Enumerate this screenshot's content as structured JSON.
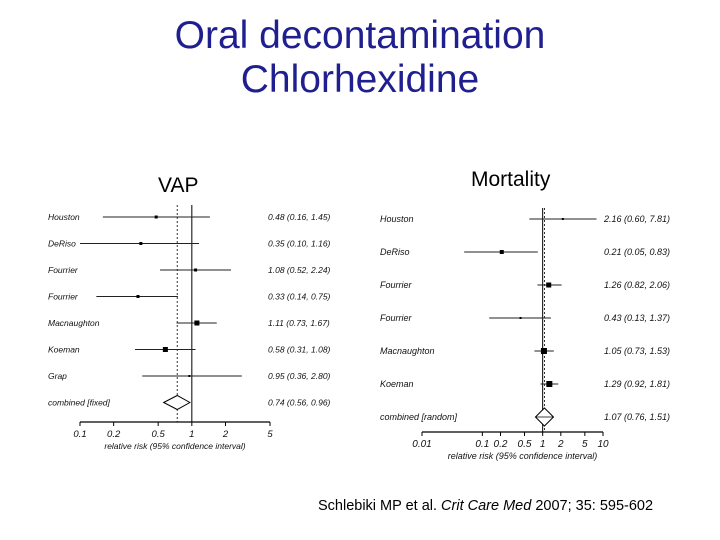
{
  "title_line1": "Oral decontamination",
  "title_line2": "Chlorhexidine",
  "panel_label_left": "VAP",
  "panel_label_right": "Mortality",
  "citation": {
    "authors": "Schlebiki MP et al. ",
    "journal": "Crit Care Med",
    "details": " 2007; 35: 595-602"
  },
  "colors": {
    "title": "#1f1f8f"
  },
  "chart_data": [
    {
      "type": "scatter",
      "subtype": "forest-plot",
      "panel": "VAP",
      "scale": "log",
      "xlabel": "relative risk (95% confidence interval)",
      "xlim": [
        0.1,
        5
      ],
      "xticks": [
        "0.1",
        "0.2",
        "0.5",
        "1",
        "2",
        "5"
      ],
      "reference_line": 1,
      "pooled_line": 0.74,
      "studies": [
        {
          "name": "Houston",
          "rr": 0.48,
          "lo": 0.16,
          "hi": 1.45,
          "ci_text": "0.48 (0.16, 1.45)"
        },
        {
          "name": "DeRiso",
          "rr": 0.35,
          "lo": 0.1,
          "hi": 1.16,
          "ci_text": "0.35 (0.10, 1.16)"
        },
        {
          "name": "Fourrier",
          "rr": 1.08,
          "lo": 0.52,
          "hi": 2.24,
          "ci_text": "1.08 (0.52, 2.24)"
        },
        {
          "name": "Fourrier",
          "rr": 0.33,
          "lo": 0.14,
          "hi": 0.75,
          "ci_text": "0.33 (0.14, 0.75)"
        },
        {
          "name": "Macnaughton",
          "rr": 1.11,
          "lo": 0.73,
          "hi": 1.67,
          "ci_text": "1.11 (0.73, 1.67)"
        },
        {
          "name": "Koeman",
          "rr": 0.58,
          "lo": 0.31,
          "hi": 1.08,
          "ci_text": "0.58 (0.31, 1.08)"
        },
        {
          "name": "Grap",
          "rr": 0.95,
          "lo": 0.36,
          "hi": 2.8,
          "ci_text": "0.95 (0.36, 2.80)"
        }
      ],
      "combined": {
        "name": "combined [fixed]",
        "rr": 0.74,
        "lo": 0.56,
        "hi": 0.96,
        "ci_text": "0.74 (0.56, 0.96)"
      }
    },
    {
      "type": "scatter",
      "subtype": "forest-plot",
      "panel": "Mortality",
      "scale": "log",
      "xlabel": "relative risk (95% confidence interval)",
      "xlim": [
        0.01,
        10
      ],
      "xticks": [
        "0.01",
        "0.1",
        "0.2",
        "0.5",
        "1",
        "2",
        "5",
        "10"
      ],
      "reference_line": 1,
      "pooled_line": 1.07,
      "studies": [
        {
          "name": "Houston",
          "rr": 2.16,
          "lo": 0.6,
          "hi": 7.81,
          "ci_text": "2.16 (0.60, 7.81)"
        },
        {
          "name": "DeRiso",
          "rr": 0.21,
          "lo": 0.05,
          "hi": 0.83,
          "ci_text": "0.21 (0.05, 0.83)"
        },
        {
          "name": "Fourrier",
          "rr": 1.26,
          "lo": 0.82,
          "hi": 2.06,
          "ci_text": "1.26 (0.82, 2.06)"
        },
        {
          "name": "Fourrier",
          "rr": 0.43,
          "lo": 0.13,
          "hi": 1.37,
          "ci_text": "0.43 (0.13, 1.37)"
        },
        {
          "name": "Macnaughton",
          "rr": 1.05,
          "lo": 0.73,
          "hi": 1.53,
          "ci_text": "1.05 (0.73, 1.53)"
        },
        {
          "name": "Koeman",
          "rr": 1.29,
          "lo": 0.92,
          "hi": 1.81,
          "ci_text": "1.29 (0.92, 1.81)"
        }
      ],
      "combined": {
        "name": "combined [random]",
        "rr": 1.07,
        "lo": 0.76,
        "hi": 1.51,
        "ci_text": "1.07 (0.76, 1.51)"
      }
    }
  ]
}
